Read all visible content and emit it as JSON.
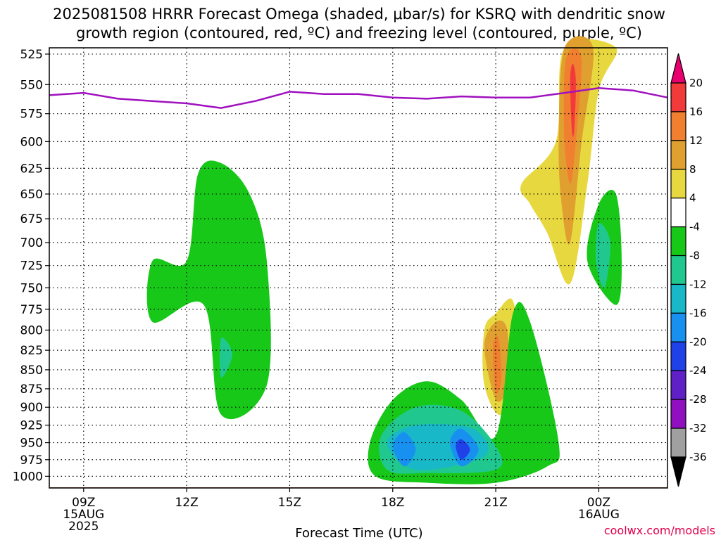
{
  "chart_data": {
    "type": "heatmap",
    "title_line1": "2025081508 HRRR Forecast Omega (shaded, μbar/s) for KSRQ with dendritic snow",
    "title_line2": "growth region (contoured, red, ºC) and freezing level (contoured, purple, ºC)",
    "xlabel": "Forecast Time (UTC)",
    "credit": "coolwx.com/models",
    "y_axis": {
      "label": "",
      "scale": "log-pressure",
      "reversed": true,
      "ticks": [
        "525",
        "550",
        "575",
        "600",
        "625",
        "650",
        "675",
        "700",
        "725",
        "750",
        "775",
        "800",
        "825",
        "850",
        "875",
        "900",
        "925",
        "950",
        "975",
        "1000"
      ],
      "range_hPa": [
        520,
        1018
      ]
    },
    "x_axis": {
      "range_hours_utc": [
        "2025-08-15 08Z",
        "2025-08-16 02Z"
      ],
      "tick_labels": [
        {
          "time": "09Z",
          "line2": "15AUG",
          "line3": "2025"
        },
        {
          "time": "12Z",
          "line2": "",
          "line3": ""
        },
        {
          "time": "15Z",
          "line2": "",
          "line3": ""
        },
        {
          "time": "18Z",
          "line2": "",
          "line3": ""
        },
        {
          "time": "21Z",
          "line2": "",
          "line3": ""
        },
        {
          "time": "00Z",
          "line2": "16AUG",
          "line3": ""
        }
      ]
    },
    "grid": true,
    "colorbar": {
      "position": "right",
      "levels": [
        "20",
        "16",
        "12",
        "8",
        "4",
        "-4",
        "-8",
        "-12",
        "-16",
        "-20",
        "-24",
        "-28",
        "-32",
        "-36"
      ],
      "colors": [
        "#e8006e",
        "#f23a3a",
        "#f08030",
        "#e0a030",
        "#e8d840",
        "#ffffff",
        "#18c818",
        "#20c890",
        "#18b8c8",
        "#1890f0",
        "#2040e8",
        "#6020c8",
        "#9010c0",
        "#a0a0a0",
        "#000000"
      ]
    },
    "freezing_level": {
      "units": "hPa",
      "color": "#a010c0",
      "points": [
        {
          "time": "2025-08-15 08Z",
          "value": 559
        },
        {
          "time": "2025-08-15 09Z",
          "value": 557
        },
        {
          "time": "2025-08-15 10Z",
          "value": 562
        },
        {
          "time": "2025-08-15 11Z",
          "value": 564
        },
        {
          "time": "2025-08-15 12Z",
          "value": 566
        },
        {
          "time": "2025-08-15 13Z",
          "value": 570
        },
        {
          "time": "2025-08-15 14Z",
          "value": 564
        },
        {
          "time": "2025-08-15 15Z",
          "value": 556
        },
        {
          "time": "2025-08-15 16Z",
          "value": 558
        },
        {
          "time": "2025-08-15 17Z",
          "value": 558
        },
        {
          "time": "2025-08-15 18Z",
          "value": 561
        },
        {
          "time": "2025-08-15 19Z",
          "value": 562
        },
        {
          "time": "2025-08-15 20Z",
          "value": 560
        },
        {
          "time": "2025-08-15 21Z",
          "value": 561
        },
        {
          "time": "2025-08-15 22Z",
          "value": 561
        },
        {
          "time": "2025-08-15 23Z",
          "value": 557
        },
        {
          "time": "2025-08-16 00Z",
          "value": 553
        },
        {
          "time": "2025-08-16 01Z",
          "value": 555
        },
        {
          "time": "2025-08-16 02Z",
          "value": 561
        }
      ]
    },
    "surface_pressure_hPa": 1017,
    "omega_regions": [
      {
        "name": "ascent column 23Z",
        "level": "4",
        "color": "#e8d840",
        "points": [
          [
            "2025-08-15 22:00",
            660
          ],
          [
            "2025-08-15 21:45",
            640
          ],
          [
            "2025-08-15 22:45",
            600
          ],
          [
            "2025-08-15 23:00",
            520
          ],
          [
            "2025-08-16 00:30",
            520
          ],
          [
            "2025-08-16 00:00",
            555
          ],
          [
            "2025-08-15 23:40",
            640
          ],
          [
            "2025-08-15 23:10",
            745
          ],
          [
            "2025-08-15 22:30",
            690
          ]
        ]
      },
      {
        "name": "ascent column 23Z",
        "level": "8",
        "color": "#e0a030",
        "points": [
          [
            "2025-08-15 22:50",
            600
          ],
          [
            "2025-08-15 23:00",
            520
          ],
          [
            "2025-08-15 23:50",
            520
          ],
          [
            "2025-08-15 23:30",
            600
          ],
          [
            "2025-08-15 23:10",
            700
          ],
          [
            "2025-08-15 22:55",
            660
          ]
        ]
      },
      {
        "name": "ascent column 23Z",
        "level": "12",
        "color": "#f08030",
        "points": [
          [
            "2025-08-15 23:00",
            540
          ],
          [
            "2025-08-15 23:10",
            522
          ],
          [
            "2025-08-15 23:30",
            530
          ],
          [
            "2025-08-15 23:20",
            600
          ],
          [
            "2025-08-15 23:10",
            640
          ],
          [
            "2025-08-15 23:00",
            600
          ]
        ]
      },
      {
        "name": "ascent column 23Z",
        "level": "16",
        "color": "#f23a3a",
        "points": [
          [
            "2025-08-15 23:10",
            545
          ],
          [
            "2025-08-15 23:15",
            533
          ],
          [
            "2025-08-15 23:20",
            548
          ],
          [
            "2025-08-15 23:17",
            590
          ],
          [
            "2025-08-15 23:13",
            590
          ]
        ]
      },
      {
        "name": "ascent 21Z",
        "level": "4",
        "color": "#e8d840",
        "points": [
          [
            "2025-08-15 20:40",
            800
          ],
          [
            "2025-08-15 21:00",
            780
          ],
          [
            "2025-08-15 21:30",
            765
          ],
          [
            "2025-08-15 21:40",
            840
          ],
          [
            "2025-08-15 21:10",
            910
          ],
          [
            "2025-08-15 20:40",
            870
          ]
        ]
      },
      {
        "name": "ascent 21Z",
        "level": "8",
        "color": "#e0a030",
        "points": [
          [
            "2025-08-15 20:40",
            820
          ],
          [
            "2025-08-15 21:00",
            790
          ],
          [
            "2025-08-15 21:20",
            800
          ],
          [
            "2025-08-15 21:20",
            870
          ],
          [
            "2025-08-15 21:00",
            890
          ]
        ]
      },
      {
        "name": "ascent 21Z",
        "level": "12",
        "color": "#f08030",
        "points": [
          [
            "2025-08-15 20:55",
            820
          ],
          [
            "2025-08-15 21:05",
            810
          ],
          [
            "2025-08-15 21:10",
            860
          ],
          [
            "2025-08-15 21:00",
            880
          ]
        ]
      },
      {
        "name": "subsidence 13Z",
        "level": "-4",
        "color": "#18c818",
        "points": [
          [
            "2025-08-15 12:20",
            630
          ],
          [
            "2025-08-15 13:00",
            620
          ],
          [
            "2025-08-15 13:50",
            650
          ],
          [
            "2025-08-15 14:20",
            720
          ],
          [
            "2025-08-15 14:20",
            870
          ],
          [
            "2025-08-15 13:00",
            910
          ],
          [
            "2025-08-15 12:30",
            770
          ],
          [
            "2025-08-15 11:00",
            790
          ],
          [
            "2025-08-15 11:00",
            720
          ],
          [
            "2025-08-15 12:00",
            720
          ]
        ]
      },
      {
        "name": "subsidence 13Z",
        "level": "-8",
        "color": "#20c890",
        "points": [
          [
            "2025-08-15 13:00",
            810
          ],
          [
            "2025-08-15 13:20",
            830
          ],
          [
            "2025-08-15 13:00",
            860
          ]
        ]
      },
      {
        "name": "subsidence 19Z",
        "level": "-4",
        "color": "#18c818",
        "points": [
          [
            "2025-08-15 17:20",
            950
          ],
          [
            "2025-08-15 18:00",
            890
          ],
          [
            "2025-08-15 19:00",
            865
          ],
          [
            "2025-08-15 20:00",
            890
          ],
          [
            "2025-08-15 21:00",
            940
          ],
          [
            "2025-08-15 21:30",
            780
          ],
          [
            "2025-08-15 22:00",
            790
          ],
          [
            "2025-08-15 22:50",
            950
          ],
          [
            "2025-08-15 22:30",
            985
          ],
          [
            "2025-08-15 21:00",
            1010
          ],
          [
            "2025-08-15 19:00",
            1010
          ],
          [
            "2025-08-15 17:30",
            1000
          ]
        ]
      },
      {
        "name": "subsidence 19Z",
        "level": "-8",
        "color": "#20c890",
        "points": [
          [
            "2025-08-15 17:40",
            940
          ],
          [
            "2025-08-15 18:40",
            900
          ],
          [
            "2025-08-15 20:00",
            905
          ],
          [
            "2025-08-15 21:00",
            955
          ],
          [
            "2025-08-15 21:00",
            990
          ],
          [
            "2025-08-15 19:00",
            995
          ],
          [
            "2025-08-15 17:50",
            990
          ]
        ]
      },
      {
        "name": "subsidence 19Z",
        "level": "-12",
        "color": "#18b8c8",
        "points": [
          [
            "2025-08-15 17:50",
            950
          ],
          [
            "2025-08-15 18:40",
            925
          ],
          [
            "2025-08-15 20:20",
            930
          ],
          [
            "2025-08-15 20:40",
            970
          ],
          [
            "2025-08-15 18:40",
            990
          ]
        ]
      },
      {
        "name": "subsidence 19Z",
        "level": "-16",
        "color": "#1890f0",
        "points": [
          [
            "2025-08-15 18:00",
            955
          ],
          [
            "2025-08-15 18:20",
            935
          ],
          [
            "2025-08-15 18:40",
            960
          ],
          [
            "2025-08-15 18:20",
            985
          ]
        ]
      },
      {
        "name": "subsidence 19Z",
        "level": "-16",
        "color": "#1890f0",
        "points": [
          [
            "2025-08-15 19:40",
            950
          ],
          [
            "2025-08-15 20:00",
            930
          ],
          [
            "2025-08-15 20:30",
            960
          ],
          [
            "2025-08-15 20:00",
            985
          ]
        ]
      },
      {
        "name": "subsidence 19Z",
        "level": "-20",
        "color": "#2040e8",
        "points": [
          [
            "2025-08-15 19:50",
            955
          ],
          [
            "2025-08-15 20:00",
            945
          ],
          [
            "2025-08-15 20:15",
            960
          ],
          [
            "2025-08-15 20:00",
            975
          ]
        ]
      },
      {
        "name": "subsidence 01Z",
        "level": "-4",
        "color": "#18c818",
        "points": [
          [
            "2025-08-16 00:00",
            660
          ],
          [
            "2025-08-16 00:30",
            650
          ],
          [
            "2025-08-16 00:40",
            720
          ],
          [
            "2025-08-16 00:30",
            770
          ],
          [
            "2025-08-15 23:40",
            720
          ]
        ]
      },
      {
        "name": "subsidence 01Z",
        "level": "-8",
        "color": "#20c890",
        "points": [
          [
            "2025-08-16 00:00",
            680
          ],
          [
            "2025-08-16 00:20",
            700
          ],
          [
            "2025-08-16 00:10",
            750
          ],
          [
            "2025-08-15 23:55",
            720
          ]
        ]
      }
    ]
  }
}
